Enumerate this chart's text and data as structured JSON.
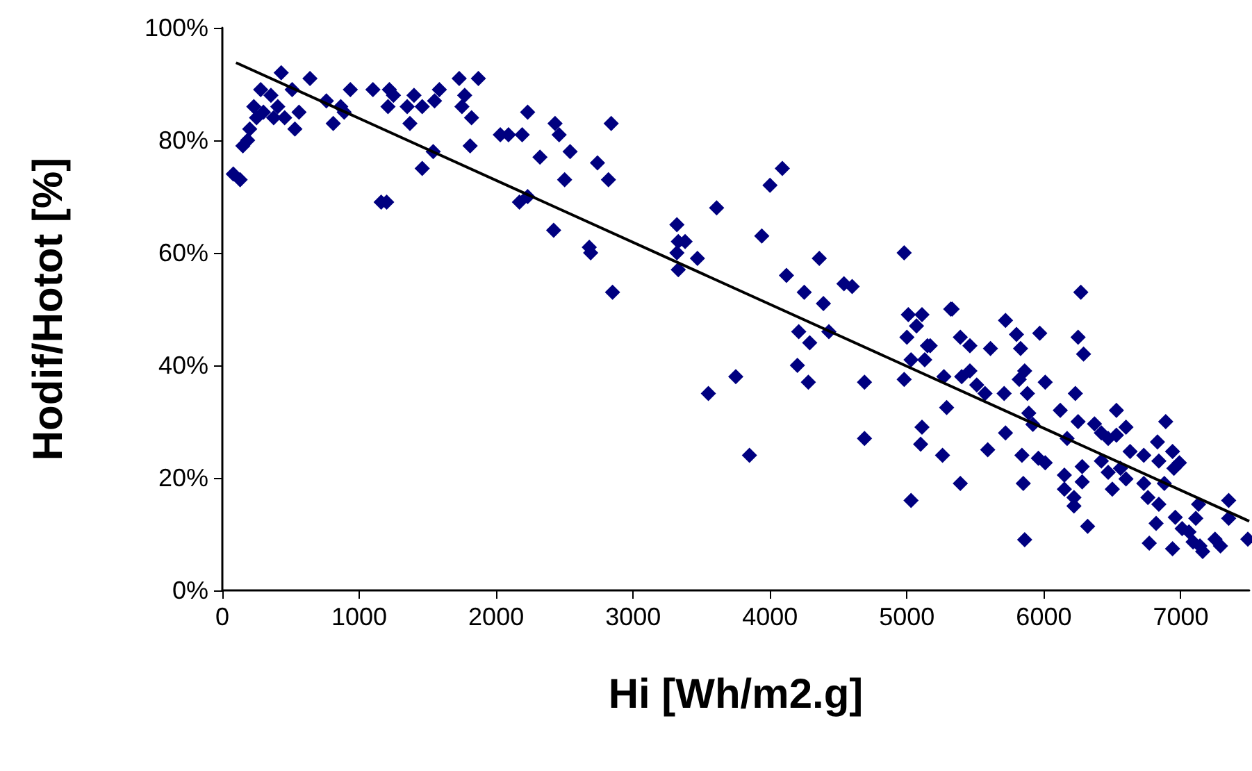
{
  "chart_data": {
    "type": "scatter",
    "xlabel": "Hi [Wh/m2.g]",
    "ylabel": "Hodif/Hotot [%]",
    "xlim": [
      0,
      7500
    ],
    "xticks": [
      0,
      1000,
      2000,
      3000,
      4000,
      5000,
      6000,
      7000
    ],
    "ylim": [
      0,
      100
    ],
    "yticks": [
      {
        "value": 0,
        "label": "0%"
      },
      {
        "value": 20,
        "label": "20%"
      },
      {
        "value": 40,
        "label": "40%"
      },
      {
        "value": 60,
        "label": "60%"
      },
      {
        "value": 80,
        "label": "80%"
      },
      {
        "value": 100,
        "label": "100%"
      }
    ],
    "grid": false,
    "marker": "diamond",
    "series": [
      {
        "color": "#000080",
        "x": [
          80,
          130,
          150,
          185,
          200,
          250,
          230,
          280,
          300,
          355,
          375,
          405,
          430,
          455,
          510,
          530,
          560,
          640,
          760,
          810,
          865,
          890,
          935,
          1100,
          1220,
          1210,
          1250,
          1370,
          1350,
          1400,
          1460,
          1460,
          1550,
          1540,
          1585,
          1730,
          1750,
          1770,
          1810,
          1820,
          1870,
          1160,
          1200,
          2190,
          2230,
          2230,
          2170,
          2030,
          2090,
          2320,
          2430,
          2460,
          2500,
          2420,
          2540,
          2680,
          2690,
          2740,
          2820,
          2840,
          2850,
          3320,
          3330,
          3380,
          3320,
          3470,
          3330,
          3610,
          3550,
          3750,
          3850,
          3940,
          4000,
          4090,
          4120,
          4250,
          4360,
          4390,
          4210,
          4290,
          4430,
          4200,
          4280,
          4540,
          4600,
          4690,
          4690,
          4980,
          5010,
          5110,
          5070,
          5000,
          5150,
          5030,
          5130,
          4980,
          5110,
          5100,
          5030,
          5320,
          5330,
          5390,
          5460,
          5170,
          5270,
          5400,
          5460,
          5510,
          5570,
          5290,
          5260,
          5390,
          5590,
          5610,
          5720,
          5800,
          5830,
          5710,
          5720,
          5860,
          5820,
          5880,
          5970,
          6010,
          5890,
          5920,
          5840,
          5850,
          5860,
          5960,
          6010,
          6120,
          6170,
          6150,
          6150,
          6220,
          6220,
          6270,
          6250,
          6290,
          6230,
          6250,
          6280,
          6280,
          6320,
          6370,
          6420,
          6470,
          6530,
          6530,
          6600,
          6420,
          6470,
          6500,
          6560,
          6630,
          6600,
          6730,
          6730,
          6760,
          6830,
          6890,
          6840,
          6940,
          6990,
          6950,
          6880,
          6840,
          6820,
          6770,
          6940,
          6960,
          7010,
          7060,
          7090,
          7140,
          7160,
          7110,
          7130,
          7250,
          7290,
          7350,
          7350,
          7490
        ],
        "values": [
          74,
          73,
          79,
          80,
          82,
          84,
          86,
          89,
          85,
          88,
          84,
          86,
          92,
          84,
          89,
          82,
          85,
          91,
          87,
          83,
          86,
          85,
          89,
          89,
          89,
          86,
          88,
          83,
          86,
          88,
          86,
          75,
          87,
          78,
          89,
          91,
          86,
          88,
          79,
          84,
          91,
          69,
          69,
          81,
          85,
          70,
          69,
          81,
          81,
          77,
          83,
          81,
          73,
          64,
          78,
          61,
          60,
          76,
          73,
          83,
          53,
          65,
          62,
          62,
          60,
          59,
          57,
          68,
          35,
          38,
          24,
          63,
          72,
          75,
          56,
          53,
          59,
          51,
          46,
          44,
          46,
          40,
          37,
          54.5,
          54,
          37,
          27,
          60,
          49,
          49,
          47,
          45,
          43.5,
          41,
          41,
          37.5,
          29,
          26,
          16,
          50,
          50,
          45,
          43.5,
          43.5,
          38,
          38,
          39,
          36.5,
          35,
          32.5,
          24,
          19,
          25,
          43,
          48,
          45.5,
          43,
          35,
          28,
          39,
          37.5,
          35,
          45.7,
          37,
          31.5,
          29.5,
          24,
          19,
          9,
          23.5,
          22.7,
          32,
          27,
          20.5,
          18,
          16.5,
          15,
          53,
          45,
          42,
          35,
          30,
          22,
          19.3,
          11.4,
          29.6,
          28,
          27,
          27.6,
          32,
          29,
          23,
          21,
          18,
          21.7,
          24.7,
          19.8,
          24,
          19,
          16.5,
          26.4,
          30,
          23,
          24.7,
          22.7,
          21.7,
          19,
          15.3,
          11.9,
          8.4,
          7.4,
          13,
          11,
          10.4,
          8.6,
          7.9,
          6.9,
          12.8,
          15.3,
          9.1,
          7.9,
          16,
          12.8,
          9.1
        ]
      },
      {
        "type": "line",
        "color": "#000000",
        "marker": "none",
        "x": [
          100,
          7500
        ],
        "values": [
          93.8,
          12.3
        ]
      }
    ]
  }
}
